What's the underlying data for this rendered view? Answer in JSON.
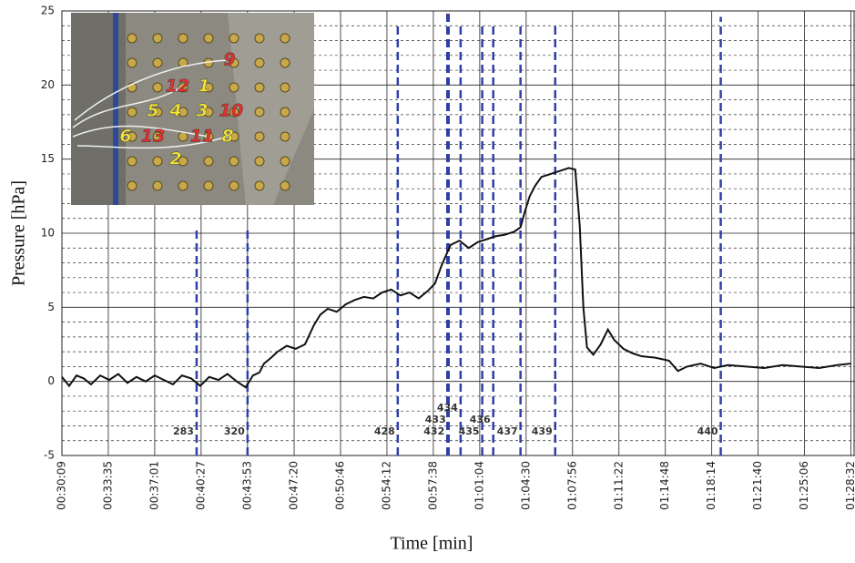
{
  "chart_data": {
    "type": "line",
    "x_label": "Time [min]",
    "y_label": "Pressure [hPa]",
    "xlim": [
      1809,
      5330
    ],
    "ylim": [
      -5,
      25
    ],
    "yticks": [
      -5,
      0,
      5,
      10,
      15,
      20,
      25
    ],
    "yminorticks": [
      -4,
      -3,
      -2,
      -1,
      1,
      2,
      3,
      4,
      6,
      7,
      8,
      9,
      11,
      12,
      13,
      14,
      16,
      17,
      18,
      19,
      21,
      22,
      23,
      24
    ],
    "xticks": [
      {
        "value": 1809,
        "label": "00:30:09"
      },
      {
        "value": 2015,
        "label": "00:33:35"
      },
      {
        "value": 2221,
        "label": "00:37:01"
      },
      {
        "value": 2427,
        "label": "00:40:27"
      },
      {
        "value": 2633,
        "label": "00:43:53"
      },
      {
        "value": 2840,
        "label": "00:47:20"
      },
      {
        "value": 3046,
        "label": "00:50:46"
      },
      {
        "value": 3252,
        "label": "00:54:12"
      },
      {
        "value": 3458,
        "label": "00:57:38"
      },
      {
        "value": 3664,
        "label": "01:01:04"
      },
      {
        "value": 3870,
        "label": "01:04:30"
      },
      {
        "value": 4076,
        "label": "01:07:56"
      },
      {
        "value": 4282,
        "label": "01:11:22"
      },
      {
        "value": 4488,
        "label": "01:14:48"
      },
      {
        "value": 4694,
        "label": "01:18:14"
      },
      {
        "value": 4900,
        "label": "01:21:40"
      },
      {
        "value": 5106,
        "label": "01:25:06"
      },
      {
        "value": 5312,
        "label": "01:28:32"
      }
    ],
    "grid": true,
    "series": [
      {
        "color": "#111111",
        "x": [
          1809,
          1841,
          1874,
          1906,
          1938,
          1979,
          2019,
          2059,
          2100,
          2140,
          2181,
          2221,
          2261,
          2302,
          2342,
          2383,
          2423,
          2463,
          2504,
          2544,
          2585,
          2625,
          2657,
          2686,
          2706,
          2738,
          2766,
          2807,
          2847,
          2888,
          2928,
          2956,
          2989,
          3029,
          3069,
          3110,
          3150,
          3191,
          3231,
          3271,
          3312,
          3352,
          3393,
          3433,
          3465,
          3494,
          3514,
          3534,
          3574,
          3615,
          3655,
          3696,
          3736,
          3776,
          3817,
          3845,
          3865,
          3886,
          3910,
          3938,
          3979,
          4019,
          4059,
          4088,
          4108,
          4124,
          4140,
          4168,
          4201,
          4233,
          4261,
          4302,
          4342,
          4382,
          4443,
          4504,
          4544,
          4584,
          4645,
          4705,
          4766,
          4847,
          4927,
          5008,
          5089,
          5170,
          5251,
          5312
        ],
        "values": [
          0.3,
          -0.3,
          0.4,
          0.2,
          -0.2,
          0.4,
          0.1,
          0.5,
          -0.1,
          0.3,
          0.0,
          0.4,
          0.1,
          -0.2,
          0.4,
          0.2,
          -0.3,
          0.3,
          0.1,
          0.5,
          0.0,
          -0.4,
          0.4,
          0.6,
          1.2,
          1.6,
          2.0,
          2.4,
          2.2,
          2.5,
          3.8,
          4.5,
          4.9,
          4.7,
          5.2,
          5.5,
          5.7,
          5.6,
          6.0,
          6.2,
          5.8,
          6.0,
          5.6,
          6.1,
          6.6,
          7.8,
          8.5,
          9.2,
          9.5,
          9.0,
          9.4,
          9.6,
          9.8,
          9.9,
          10.1,
          10.4,
          11.5,
          12.5,
          13.2,
          13.8,
          14.0,
          14.2,
          14.4,
          14.3,
          10.5,
          5.0,
          2.3,
          1.8,
          2.5,
          3.5,
          2.8,
          2.2,
          1.9,
          1.7,
          1.6,
          1.4,
          0.7,
          1.0,
          1.2,
          0.9,
          1.1,
          1.0,
          0.9,
          1.1,
          1.0,
          0.9,
          1.1,
          1.2
        ]
      }
    ],
    "marker_color": "#2f3fa8",
    "markers": [
      {
        "label": "283",
        "x": 2407,
        "top": 10.3
      },
      {
        "label": "320",
        "x": 2633,
        "top": 10.3
      },
      {
        "label": "428",
        "x": 3300,
        "top": 24.2
      },
      {
        "label": "432",
        "x": 3520,
        "top": 25
      },
      {
        "label": "433",
        "x": 3526,
        "top": 25
      },
      {
        "label": "434",
        "x": 3579,
        "top": 24.2
      },
      {
        "label": "435",
        "x": 3675,
        "top": 24.2
      },
      {
        "label": "436",
        "x": 3724,
        "top": 24.2
      },
      {
        "label": "437",
        "x": 3845,
        "top": 24.2
      },
      {
        "label": "439",
        "x": 3999,
        "top": 24.2
      },
      {
        "label": "440",
        "x": 4734,
        "top": 24.6
      }
    ],
    "inset_labels": [
      {
        "text": "9",
        "color": "#e53030"
      },
      {
        "text": "12",
        "color": "#e53030"
      },
      {
        "text": "1",
        "color": "#f2e23a"
      },
      {
        "text": "5",
        "color": "#f2e23a"
      },
      {
        "text": "4",
        "color": "#f2e23a"
      },
      {
        "text": "3",
        "color": "#f2e23a"
      },
      {
        "text": "10",
        "color": "#e53030"
      },
      {
        "text": "6",
        "color": "#f2e23a"
      },
      {
        "text": "13",
        "color": "#e53030"
      },
      {
        "text": "11",
        "color": "#e53030"
      },
      {
        "text": "8",
        "color": "#f2e23a"
      },
      {
        "text": "2",
        "color": "#f2e23a"
      }
    ]
  }
}
